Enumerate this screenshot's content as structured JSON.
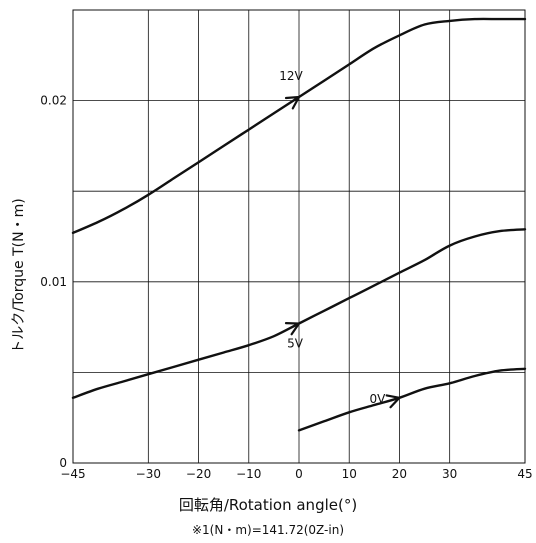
{
  "chart_data": {
    "type": "line",
    "title": "",
    "xlabel": "回転角/Rotation angle(°)",
    "ylabel": "トルク/Torque T(N・m)",
    "note": "※1(N・m)=141.72(0Z-in)",
    "xlim": [
      -45,
      45
    ],
    "ylim": [
      0,
      0.025
    ],
    "x_ticks": [
      -45,
      -30,
      -20,
      -10,
      0,
      10,
      20,
      30,
      45
    ],
    "x_gridlines": [
      -30,
      -20,
      -10,
      0,
      10,
      20,
      30
    ],
    "y_ticks": [
      0,
      0.01,
      0.02
    ],
    "y_tick_labels": [
      "0",
      "0.01",
      "0.02"
    ],
    "y_gridlines": [
      0.005,
      0.01,
      0.015,
      0.02
    ],
    "grid": true,
    "series": [
      {
        "name": "12V",
        "x": [
          -45,
          -40,
          -35,
          -30,
          -25,
          -20,
          -15,
          -10,
          -5,
          0,
          5,
          10,
          15,
          20,
          25,
          30,
          35,
          40,
          45
        ],
        "y": [
          0.0127,
          0.0133,
          0.014,
          0.0148,
          0.0157,
          0.0166,
          0.0175,
          0.0184,
          0.0193,
          0.0202,
          0.0211,
          0.022,
          0.0229,
          0.0236,
          0.0242,
          0.0244,
          0.0245,
          0.0245,
          0.0245
        ],
        "arrow_at_x": 0
      },
      {
        "name": "5V",
        "x": [
          -45,
          -40,
          -35,
          -30,
          -25,
          -20,
          -15,
          -10,
          -5,
          0,
          5,
          10,
          15,
          20,
          25,
          30,
          35,
          40,
          45
        ],
        "y": [
          0.0036,
          0.0041,
          0.0045,
          0.0049,
          0.0053,
          0.0057,
          0.0061,
          0.0065,
          0.007,
          0.0077,
          0.0084,
          0.0091,
          0.0098,
          0.0105,
          0.0112,
          0.012,
          0.0125,
          0.0128,
          0.0129
        ],
        "arrow_at_x": 0
      },
      {
        "name": "0V",
        "x": [
          0,
          5,
          10,
          15,
          20,
          25,
          30,
          35,
          40,
          45
        ],
        "y": [
          0.0018,
          0.0023,
          0.0028,
          0.0032,
          0.0036,
          0.0041,
          0.0044,
          0.0048,
          0.0051,
          0.0052
        ],
        "arrow_at_x": 20
      }
    ]
  }
}
